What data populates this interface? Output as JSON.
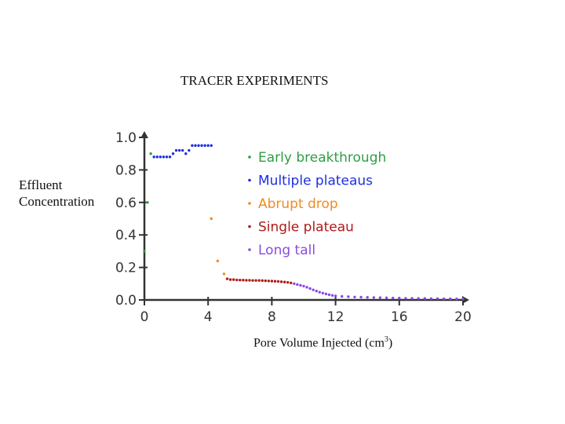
{
  "chart_data": {
    "type": "scatter",
    "title": "TRACER EXPERIMENTS",
    "ylabel_lines": [
      "Effluent",
      "Concentration"
    ],
    "xlabel": "Pore Volume Injected (cm",
    "xlabel_sup": "3",
    "xlabel_end": ")",
    "xlim": [
      0,
      20
    ],
    "ylim": [
      0,
      1.0
    ],
    "x_ticks": [
      0,
      4,
      8,
      12,
      16,
      20
    ],
    "x_tick_labels": [
      "0",
      "4",
      "8",
      "12",
      "16",
      "20"
    ],
    "y_ticks": [
      0,
      0.2,
      0.4,
      0.6,
      0.8,
      1.0
    ],
    "y_tick_labels": [
      "0.0",
      "0.2",
      "0.4",
      "0.6",
      "0.8",
      "1.0"
    ],
    "grid": false,
    "legend_position": "right",
    "series": [
      {
        "name": "Early breakthrough",
        "color": "#2e9e44",
        "points": [
          [
            0.0,
            0.3
          ],
          [
            0.2,
            0.6
          ],
          [
            0.4,
            0.9
          ]
        ]
      },
      {
        "name": "Multiple plateaus",
        "color": "#1f2ee0",
        "points": [
          [
            0.6,
            0.88
          ],
          [
            0.8,
            0.88
          ],
          [
            1.0,
            0.88
          ],
          [
            1.2,
            0.88
          ],
          [
            1.4,
            0.88
          ],
          [
            1.6,
            0.88
          ],
          [
            1.8,
            0.9
          ],
          [
            2.0,
            0.92
          ],
          [
            2.2,
            0.92
          ],
          [
            2.4,
            0.92
          ],
          [
            2.6,
            0.9
          ],
          [
            2.8,
            0.92
          ],
          [
            3.0,
            0.95
          ],
          [
            3.2,
            0.95
          ],
          [
            3.4,
            0.95
          ],
          [
            3.6,
            0.95
          ],
          [
            3.8,
            0.95
          ],
          [
            4.0,
            0.95
          ],
          [
            4.2,
            0.95
          ]
        ]
      },
      {
        "name": "Abrupt drop",
        "color": "#f28a1e",
        "points": [
          [
            4.2,
            0.5
          ],
          [
            4.6,
            0.24
          ],
          [
            5.0,
            0.16
          ]
        ]
      },
      {
        "name": "Single plateau",
        "color": "#b01a1a",
        "points": [
          [
            5.2,
            0.13
          ],
          [
            5.4,
            0.125
          ],
          [
            5.6,
            0.125
          ],
          [
            5.8,
            0.123
          ],
          [
            6.0,
            0.122
          ],
          [
            6.2,
            0.122
          ],
          [
            6.4,
            0.121
          ],
          [
            6.6,
            0.121
          ],
          [
            6.8,
            0.12
          ],
          [
            7.0,
            0.12
          ],
          [
            7.2,
            0.12
          ],
          [
            7.4,
            0.119
          ],
          [
            7.6,
            0.118
          ],
          [
            7.8,
            0.117
          ],
          [
            8.0,
            0.116
          ],
          [
            8.2,
            0.115
          ],
          [
            8.4,
            0.114
          ],
          [
            8.6,
            0.112
          ],
          [
            8.8,
            0.11
          ],
          [
            9.0,
            0.108
          ],
          [
            9.2,
            0.105
          ]
        ]
      },
      {
        "name": "Long tall",
        "color": "#8a4be0",
        "points": [
          [
            9.4,
            0.1
          ],
          [
            9.6,
            0.095
          ],
          [
            9.8,
            0.09
          ],
          [
            10.0,
            0.085
          ],
          [
            10.2,
            0.078
          ],
          [
            10.4,
            0.07
          ],
          [
            10.6,
            0.062
          ],
          [
            10.8,
            0.055
          ],
          [
            11.0,
            0.048
          ],
          [
            11.2,
            0.042
          ],
          [
            11.4,
            0.037
          ],
          [
            11.6,
            0.032
          ],
          [
            11.8,
            0.028
          ],
          [
            12.0,
            0.025
          ],
          [
            12.4,
            0.022
          ],
          [
            12.8,
            0.02
          ],
          [
            13.2,
            0.018
          ],
          [
            13.6,
            0.017
          ],
          [
            14.0,
            0.016
          ],
          [
            14.4,
            0.015
          ],
          [
            14.8,
            0.014
          ],
          [
            15.2,
            0.013
          ],
          [
            15.6,
            0.012
          ],
          [
            16.0,
            0.011
          ],
          [
            16.4,
            0.01
          ],
          [
            16.8,
            0.01
          ],
          [
            17.2,
            0.009
          ],
          [
            17.6,
            0.009
          ],
          [
            18.0,
            0.008
          ],
          [
            18.4,
            0.008
          ],
          [
            18.8,
            0.007
          ],
          [
            19.2,
            0.007
          ],
          [
            19.6,
            0.006
          ],
          [
            20.0,
            0.006
          ]
        ]
      }
    ]
  }
}
